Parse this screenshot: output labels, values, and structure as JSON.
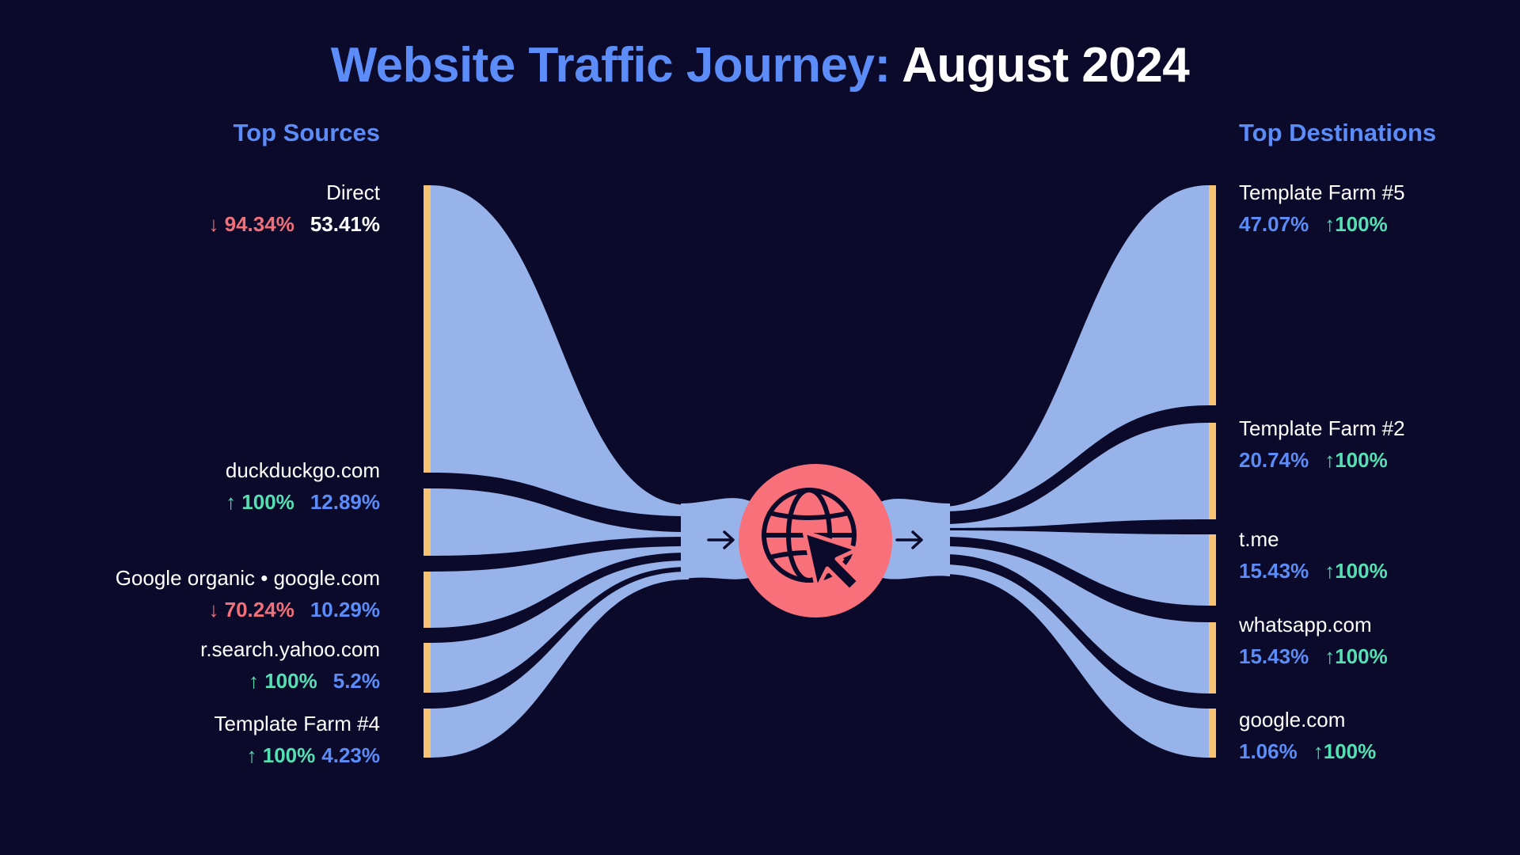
{
  "title": {
    "highlight": "Website Traffic Journey:",
    "rest": "August 2024"
  },
  "sources_heading": "Top Sources",
  "destinations_heading": "Top Destinations",
  "colors": {
    "background": "#0b0a2a",
    "flow": "#97b3ea",
    "node_bar": "#f8c373",
    "hub": "#f8707a",
    "accent_blue": "#5b8cf7",
    "up_green": "#55e0b4",
    "down_red": "#f0707a"
  },
  "hub_icon": "globe-cursor-icon",
  "sources": [
    {
      "name": "Direct",
      "change": "↓ 94.34%",
      "direction": "down",
      "share": "53.41%",
      "value": 53.41
    },
    {
      "name": "duckduckgo.com",
      "change": "↑ 100%",
      "direction": "up",
      "share": "12.89%",
      "value": 12.89
    },
    {
      "name": "Google organic • google.com",
      "change": "↓ 70.24%",
      "direction": "down",
      "share": "10.29%",
      "value": 10.29
    },
    {
      "name": "r.search.yahoo.com",
      "change": "↑ 100%",
      "direction": "up",
      "share": "5.2%",
      "value": 5.2
    },
    {
      "name": "Template Farm #4",
      "change": "↑ 100%",
      "direction": "up",
      "share": "4.23%",
      "value": 4.23
    }
  ],
  "destinations": [
    {
      "name": "Template Farm #5",
      "share": "47.07%",
      "change": "↑100%",
      "value": 47.07
    },
    {
      "name": "Template Farm #2",
      "share": "20.74%",
      "change": "↑100%",
      "value": 20.74
    },
    {
      "name": "t.me",
      "share": "15.43%",
      "change": "↑100%",
      "value": 15.43
    },
    {
      "name": "whatsapp.com",
      "share": "15.43%",
      "change": "↑100%",
      "value": 15.43
    },
    {
      "name": "google.com",
      "share": "1.06%",
      "change": "↑100%",
      "value": 1.06
    }
  ]
}
